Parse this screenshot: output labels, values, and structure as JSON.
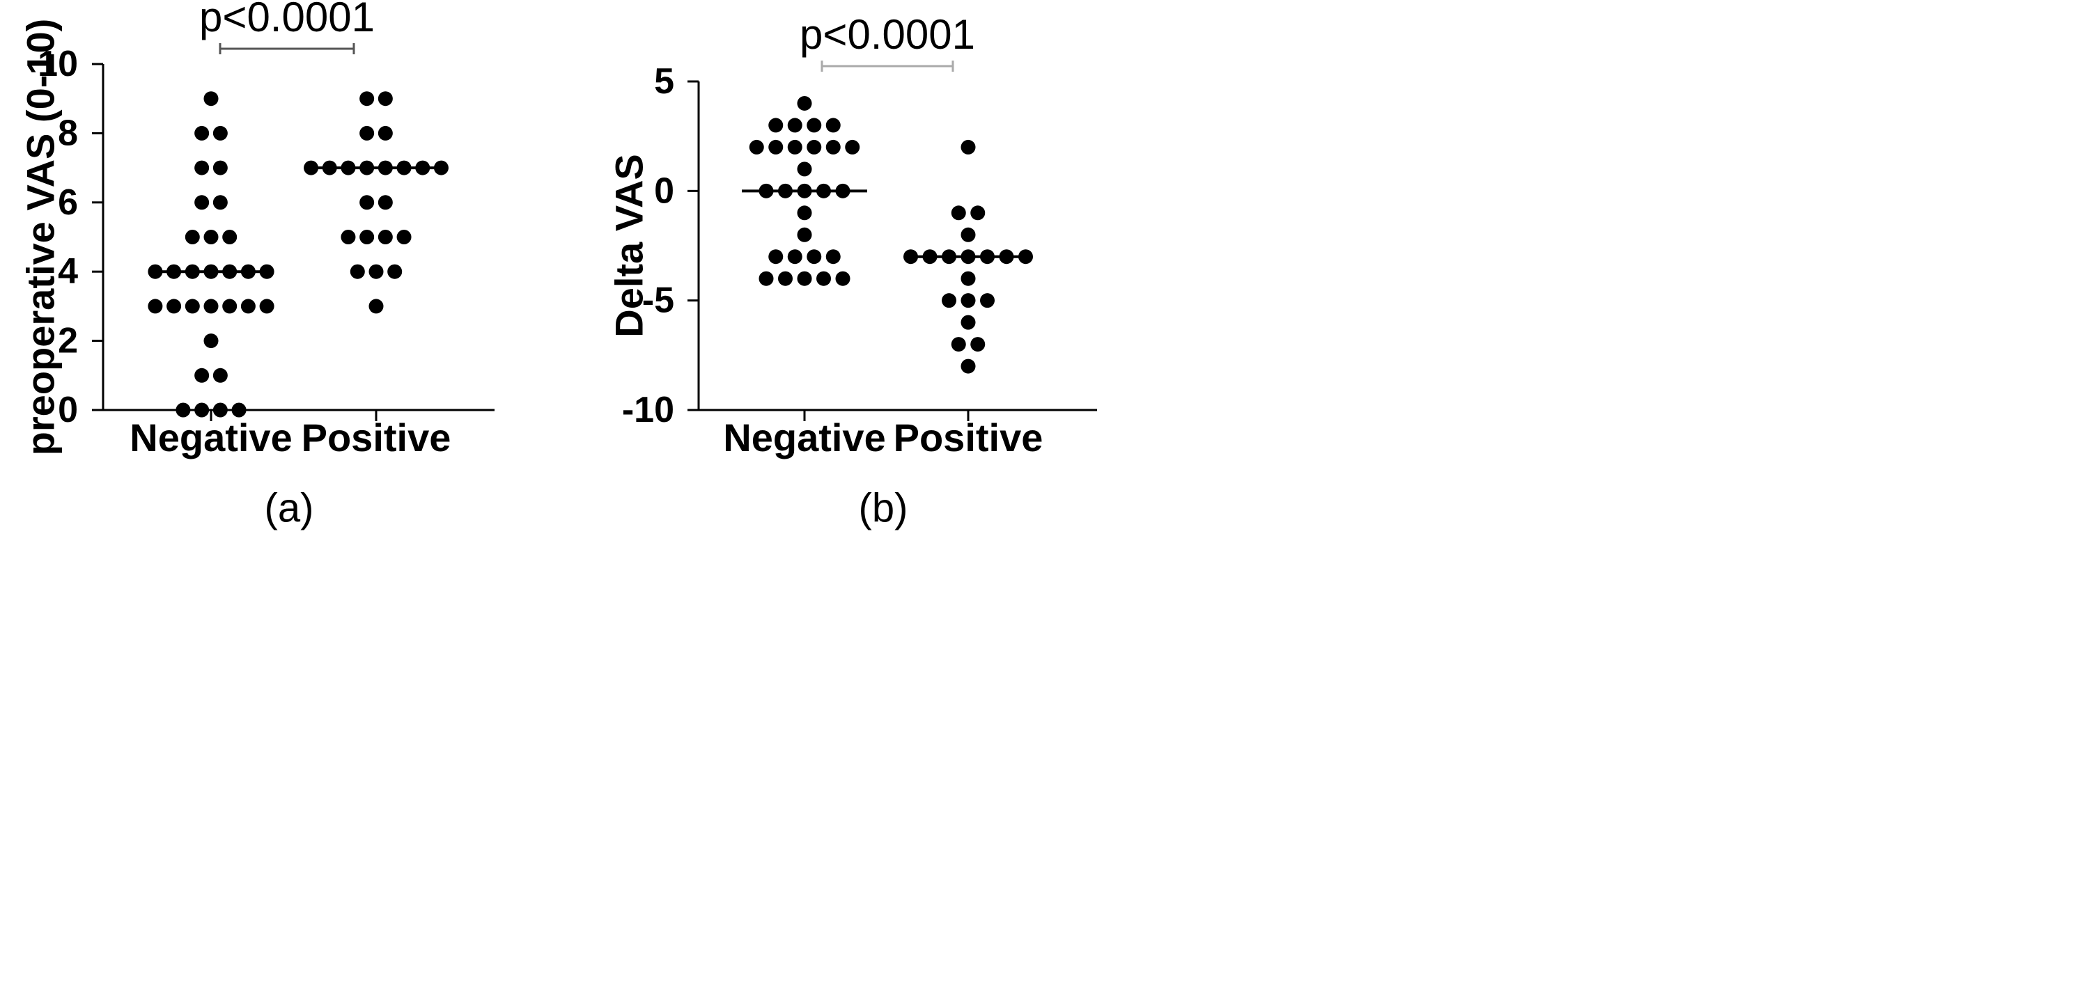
{
  "chart_data": [
    {
      "type": "scatter",
      "panel_label": "(a)",
      "title": "",
      "xlabel": "",
      "ylabel": "preoperative VAS (0-10)",
      "categories": [
        "Negative",
        "Positive"
      ],
      "ylim": [
        0,
        10
      ],
      "yticks": [
        0,
        2,
        4,
        6,
        8,
        10
      ],
      "grid": false,
      "legend": "none",
      "significance": {
        "label": "p<0.0001",
        "between": [
          "Negative",
          "Positive"
        ]
      },
      "series": [
        {
          "category": "Negative",
          "values": [
            9,
            8,
            8,
            7,
            7,
            6,
            6,
            5,
            5,
            5,
            4,
            4,
            4,
            4,
            4,
            4,
            4,
            3,
            3,
            3,
            3,
            3,
            3,
            3,
            2,
            1,
            1,
            0,
            0,
            0,
            0
          ],
          "median": 4
        },
        {
          "category": "Positive",
          "values": [
            9,
            9,
            8,
            8,
            7,
            7,
            7,
            7,
            7,
            7,
            7,
            7,
            6,
            6,
            5,
            5,
            5,
            5,
            4,
            4,
            4,
            3
          ],
          "median": 7
        }
      ],
      "colors": {
        "points": "#000000",
        "median_line": "#000000",
        "bracket": "#555555"
      }
    },
    {
      "type": "scatter",
      "panel_label": "(b)",
      "title": "",
      "xlabel": "",
      "ylabel": "Delta VAS",
      "categories": [
        "Negative",
        "Positive"
      ],
      "ylim": [
        -10,
        5
      ],
      "yticks": [
        -10,
        -5,
        0,
        5
      ],
      "grid": false,
      "legend": "none",
      "significance": {
        "label": "p<0.0001",
        "between": [
          "Negative",
          "Positive"
        ]
      },
      "series": [
        {
          "category": "Negative",
          "values": [
            4,
            3,
            3,
            3,
            3,
            2,
            2,
            2,
            2,
            2,
            2,
            1,
            0,
            0,
            0,
            0,
            0,
            -1,
            -2,
            -3,
            -3,
            -3,
            -3,
            -4,
            -4,
            -4,
            -4,
            -4
          ],
          "median": 0
        },
        {
          "category": "Positive",
          "values": [
            2,
            -1,
            -1,
            -2,
            -3,
            -3,
            -3,
            -3,
            -3,
            -3,
            -3,
            -4,
            -5,
            -5,
            -5,
            -6,
            -7,
            -7,
            -8
          ],
          "median": -3
        }
      ],
      "colors": {
        "points": "#000000",
        "median_line": "#000000",
        "bracket": "#aaaaaa"
      }
    }
  ]
}
